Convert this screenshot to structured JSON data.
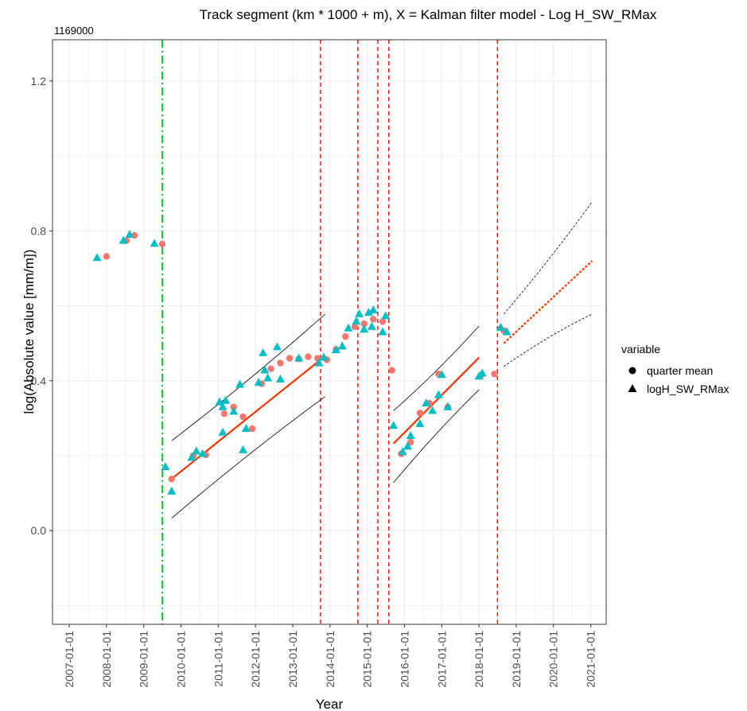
{
  "chart_data": {
    "type": "scatter",
    "title": "Track segment (km * 1000 + m), X = Kalman filter model - Log H_SW_RMax",
    "subtitle": "1169000",
    "xlabel": "Year",
    "ylabel": "log(Absolute value [mm/m])",
    "x_axis_type": "date",
    "xlim": [
      "2006-07-21",
      "2021-06-01"
    ],
    "ylim": [
      -0.25,
      1.31
    ],
    "x_ticks": [
      "2007-01-01",
      "2008-01-01",
      "2009-01-01",
      "2010-01-01",
      "2011-01-01",
      "2012-01-01",
      "2013-01-01",
      "2014-01-01",
      "2015-01-01",
      "2016-01-01",
      "2017-01-01",
      "2018-01-01",
      "2019-01-01",
      "2020-01-01",
      "2021-01-01"
    ],
    "y_ticks": [
      "0.0",
      "0.4",
      "0.8",
      "1.2"
    ],
    "y_tick_values": [
      0.0,
      0.4,
      0.8,
      1.2
    ],
    "grid": true,
    "legend": {
      "title": "variable",
      "position": "right",
      "entries": [
        {
          "label": "quarter mean",
          "shape": "circle"
        },
        {
          "label": "logH_SW_RMax",
          "shape": "triangle"
        }
      ]
    },
    "colors": {
      "quarter_mean": "#f8766d",
      "logH_SW_RMax": "#00bfc4",
      "fit": "#ff3300",
      "interval": "#000000",
      "changepoint": "#ee1111",
      "start_line": "#11cc33",
      "grid_major": "#ebebeb",
      "panel_border": "#333333"
    },
    "series": [
      {
        "name": "quarter mean",
        "marker": "circle",
        "points": [
          [
            "2008-01-01",
            0.732
          ],
          [
            "2008-07-15",
            0.774
          ],
          [
            "2008-10-01",
            0.788
          ],
          [
            "2009-07-01",
            0.765
          ],
          [
            "2009-10-01",
            0.138
          ],
          [
            "2010-05-01",
            0.2
          ],
          [
            "2010-09-01",
            0.202
          ],
          [
            "2011-03-01",
            0.312
          ],
          [
            "2011-06-01",
            0.33
          ],
          [
            "2011-09-01",
            0.304
          ],
          [
            "2011-12-01",
            0.272
          ],
          [
            "2012-03-01",
            0.392
          ],
          [
            "2012-06-01",
            0.432
          ],
          [
            "2012-09-01",
            0.447
          ],
          [
            "2012-12-01",
            0.46
          ],
          [
            "2013-03-01",
            0.458
          ],
          [
            "2013-06-01",
            0.464
          ],
          [
            "2013-09-01",
            0.46
          ],
          [
            "2013-12-01",
            0.456
          ],
          [
            "2014-03-01",
            0.484
          ],
          [
            "2014-06-01",
            0.518
          ],
          [
            "2014-09-01",
            0.544
          ],
          [
            "2014-12-01",
            0.552
          ],
          [
            "2015-03-01",
            0.564
          ],
          [
            "2015-06-01",
            0.558
          ],
          [
            "2015-09-01",
            0.428
          ],
          [
            "2015-12-01",
            0.205
          ],
          [
            "2016-03-01",
            0.236
          ],
          [
            "2016-06-01",
            0.314
          ],
          [
            "2016-09-01",
            0.34
          ],
          [
            "2016-12-01",
            0.418
          ],
          [
            "2017-03-01",
            0.33
          ],
          [
            "2018-01-15",
            0.412
          ],
          [
            "2018-06-01",
            0.418
          ],
          [
            "2018-09-01",
            0.534
          ]
        ]
      },
      {
        "name": "logH_SW_RMax",
        "marker": "triangle",
        "points": [
          [
            "2007-10-01",
            0.728
          ],
          [
            "2008-06-15",
            0.774
          ],
          [
            "2008-08-15",
            0.79
          ],
          [
            "2009-04-15",
            0.766
          ],
          [
            "2009-08-01",
            0.17
          ],
          [
            "2009-10-01",
            0.105
          ],
          [
            "2010-04-15",
            0.195
          ],
          [
            "2010-06-01",
            0.212
          ],
          [
            "2010-08-01",
            0.205
          ],
          [
            "2011-01-15",
            0.343
          ],
          [
            "2011-02-15",
            0.33
          ],
          [
            "2011-02-15",
            0.262
          ],
          [
            "2011-03-15",
            0.347
          ],
          [
            "2011-06-01",
            0.318
          ],
          [
            "2011-08-01",
            0.39
          ],
          [
            "2011-09-01",
            0.215
          ],
          [
            "2011-10-01",
            0.272
          ],
          [
            "2012-02-01",
            0.395
          ],
          [
            "2012-03-15",
            0.474
          ],
          [
            "2012-04-01",
            0.428
          ],
          [
            "2012-05-01",
            0.407
          ],
          [
            "2012-08-01",
            0.49
          ],
          [
            "2012-09-01",
            0.404
          ],
          [
            "2013-03-01",
            0.46
          ],
          [
            "2013-09-15",
            0.447
          ],
          [
            "2013-11-01",
            0.462
          ],
          [
            "2014-03-01",
            0.482
          ],
          [
            "2014-05-01",
            0.492
          ],
          [
            "2014-07-01",
            0.54
          ],
          [
            "2014-09-15",
            0.558
          ],
          [
            "2014-10-15",
            0.578
          ],
          [
            "2014-12-01",
            0.537
          ],
          [
            "2015-01-15",
            0.582
          ],
          [
            "2015-02-15",
            0.544
          ],
          [
            "2015-03-01",
            0.588
          ],
          [
            "2015-06-01",
            0.53
          ],
          [
            "2015-07-01",
            0.573
          ],
          [
            "2015-09-15",
            0.28
          ],
          [
            "2015-12-15",
            0.21
          ],
          [
            "2016-02-01",
            0.225
          ],
          [
            "2016-03-01",
            0.253
          ],
          [
            "2016-06-01",
            0.285
          ],
          [
            "2016-08-01",
            0.34
          ],
          [
            "2016-10-01",
            0.32
          ],
          [
            "2016-12-01",
            0.362
          ],
          [
            "2017-01-01",
            0.416
          ],
          [
            "2017-03-01",
            0.33
          ],
          [
            "2018-01-01",
            0.412
          ],
          [
            "2018-02-01",
            0.42
          ],
          [
            "2018-08-01",
            0.542
          ],
          [
            "2018-10-01",
            0.53
          ]
        ]
      }
    ],
    "fit_segments": [
      {
        "style": "solid",
        "x": [
          "2009-10-01",
          "2013-11-15"
        ],
        "y": [
          0.138,
          0.466
        ]
      },
      {
        "style": "solid",
        "x": [
          "2015-09-15",
          "2018-01-01"
        ],
        "y": [
          0.232,
          0.462
        ]
      },
      {
        "style": "dotted",
        "x": [
          "2018-09-01",
          "2021-01-15"
        ],
        "y": [
          0.5,
          0.72
        ]
      }
    ],
    "interval_bands": [
      {
        "style": "solid",
        "upper": {
          "x": [
            "2009-10-01",
            "2013-11-15"
          ],
          "y": [
            0.24,
            0.578
          ]
        },
        "lower": {
          "x": [
            "2009-10-01",
            "2013-11-15"
          ],
          "y": [
            0.033,
            0.358
          ]
        }
      },
      {
        "style": "solid",
        "upper": {
          "x": [
            "2015-09-15",
            "2018-01-01"
          ],
          "y": [
            0.32,
            0.546
          ]
        },
        "lower": {
          "x": [
            "2015-09-15",
            "2018-01-01"
          ],
          "y": [
            0.128,
            0.376
          ]
        }
      },
      {
        "style": "dashed",
        "upper": {
          "x": [
            "2018-09-01",
            "2021-01-15"
          ],
          "y": [
            0.578,
            0.878
          ]
        },
        "lower": {
          "x": [
            "2018-09-01",
            "2021-01-15"
          ],
          "y": [
            0.438,
            0.578
          ]
        }
      }
    ],
    "start_line": "2009-07-01",
    "changepoints": [
      "2013-10-01",
      "2014-10-01",
      "2015-04-15",
      "2015-08-01",
      "2018-07-01"
    ]
  }
}
